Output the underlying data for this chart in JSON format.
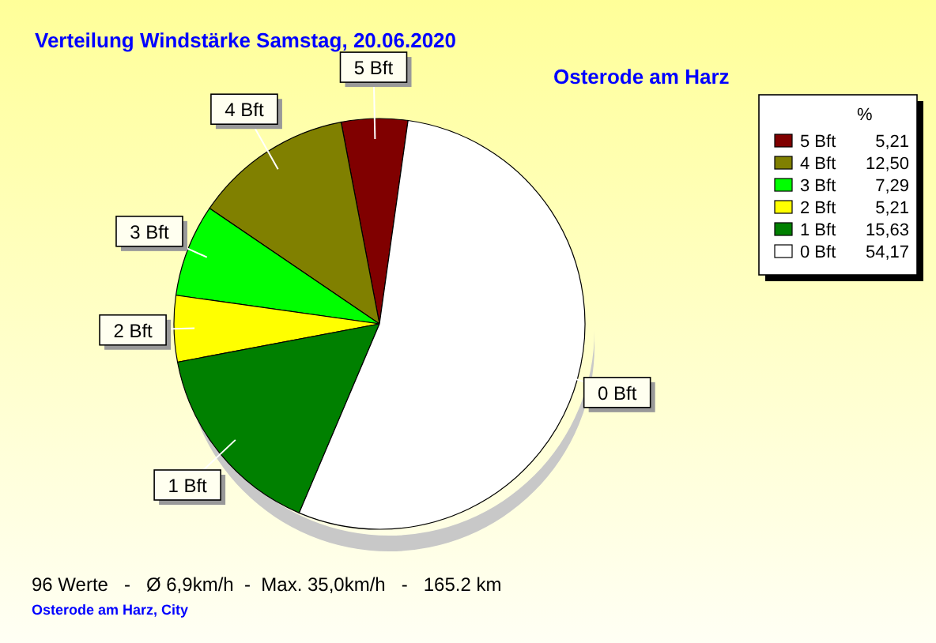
{
  "chart_data": {
    "type": "pie",
    "title": "Verteilung Windstärke  Samstag, 20.06.2020",
    "subtitle": "Osterode am Harz",
    "categories": [
      "5 Bft",
      "4 Bft",
      "3 Bft",
      "2 Bft",
      "1 Bft",
      "0 Bft"
    ],
    "values": [
      5.21,
      12.5,
      7.29,
      5.21,
      15.63,
      54.17
    ],
    "value_labels": [
      "5,21",
      "12,50",
      "7,29",
      "5,21",
      "15,63",
      "54,17"
    ],
    "colors": [
      "#800000",
      "#808000",
      "#00ff00",
      "#ffff00",
      "#008000",
      "#ffffff"
    ],
    "legend": "top right",
    "legend_title": "%",
    "annotations": [
      "96 Werte   -   Ø 6,9km/h  -  Max. 35,0km/h   -   165.2 km",
      "Osterode am Harz, City"
    ]
  }
}
